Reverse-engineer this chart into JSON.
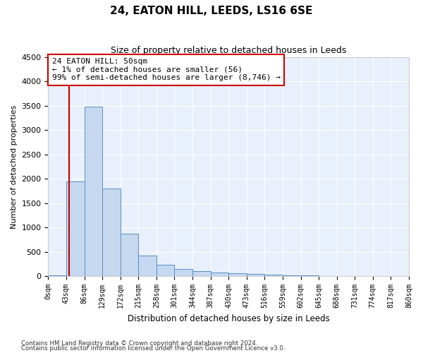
{
  "title": "24, EATON HILL, LEEDS, LS16 6SE",
  "subtitle": "Size of property relative to detached houses in Leeds",
  "xlabel": "Distribution of detached houses by size in Leeds",
  "ylabel": "Number of detached properties",
  "bar_color": "#c5d8f0",
  "bar_edge_color": "#5b8ec4",
  "background_color": "#e8f0fb",
  "grid_color": "#ffffff",
  "ylim": [
    0,
    4500
  ],
  "yticks": [
    0,
    500,
    1000,
    1500,
    2000,
    2500,
    3000,
    3500,
    4000,
    4500
  ],
  "bin_edges": [
    0,
    43,
    86,
    129,
    172,
    215,
    258,
    301,
    344,
    387,
    430,
    473,
    516,
    559,
    602,
    645,
    688,
    731,
    774,
    817,
    860
  ],
  "bin_labels": [
    "0sqm",
    "43sqm",
    "86sqm",
    "129sqm",
    "172sqm",
    "215sqm",
    "258sqm",
    "301sqm",
    "344sqm",
    "387sqm",
    "430sqm",
    "473sqm",
    "516sqm",
    "559sqm",
    "602sqm",
    "645sqm",
    "688sqm",
    "731sqm",
    "774sqm",
    "817sqm",
    "860sqm"
  ],
  "bar_heights": [
    20,
    1950,
    3480,
    1800,
    870,
    420,
    230,
    150,
    100,
    80,
    60,
    50,
    30,
    20,
    15,
    10,
    8,
    6,
    5,
    3
  ],
  "property_size": 50,
  "red_line_color": "#cc0000",
  "annotation_line1": "24 EATON HILL: 50sqm",
  "annotation_line2": "← 1% of detached houses are smaller (56)",
  "annotation_line3": "99% of semi-detached houses are larger (8,746) →",
  "annotation_box_color": "#cc0000",
  "footer_line1": "Contains HM Land Registry data © Crown copyright and database right 2024.",
  "footer_line2": "Contains public sector information licensed under the Open Government Licence v3.0."
}
